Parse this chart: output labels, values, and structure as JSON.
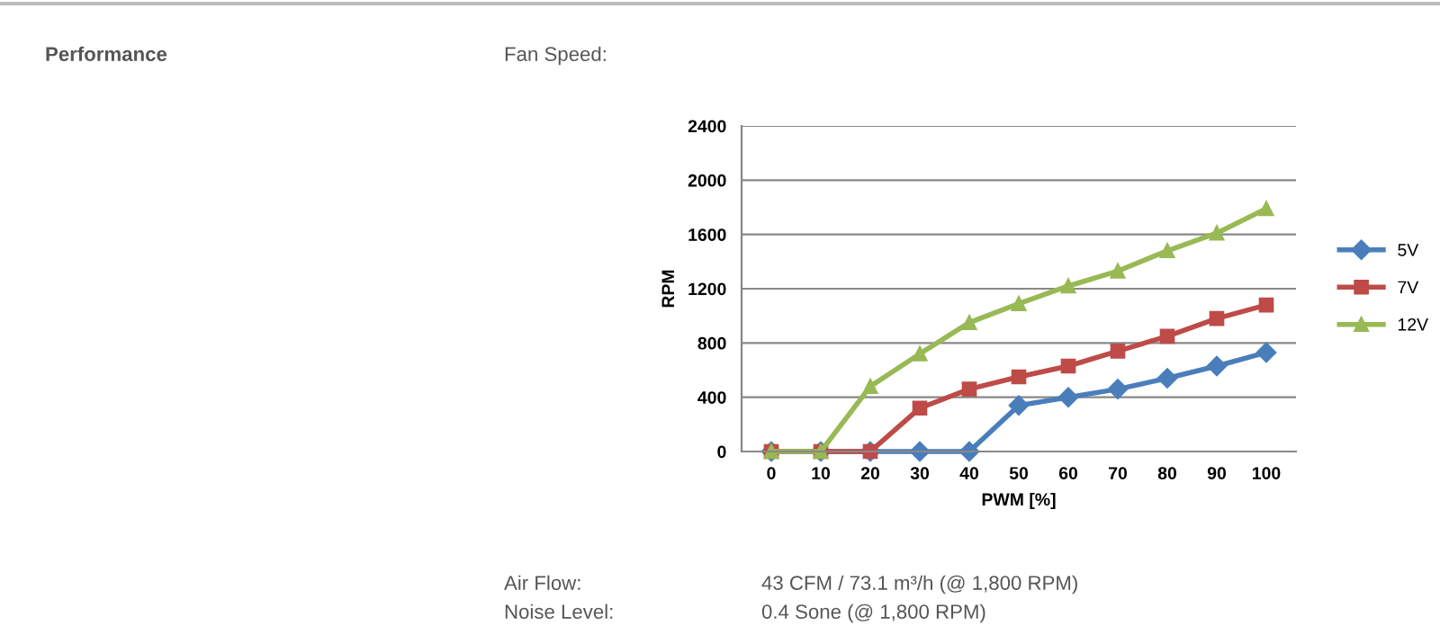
{
  "chart_data": {
    "type": "line",
    "title": "Performance",
    "subtitle": "Fan Speed:",
    "xlabel": "PWM [%]",
    "ylabel": "RPM",
    "categories": [
      "0",
      "10",
      "20",
      "30",
      "40",
      "50",
      "60",
      "70",
      "80",
      "90",
      "100"
    ],
    "series": [
      {
        "name": "5V",
        "color": "#4a7ebb",
        "marker": "diamond",
        "values": [
          0,
          0,
          0,
          0,
          0,
          340,
          400,
          460,
          540,
          630,
          730
        ]
      },
      {
        "name": "7V",
        "color": "#be4b48",
        "marker": "square",
        "values": [
          0,
          0,
          0,
          320,
          460,
          550,
          630,
          740,
          850,
          980,
          1080
        ]
      },
      {
        "name": "12V",
        "color": "#98b954",
        "marker": "triangle",
        "values": [
          0,
          0,
          480,
          720,
          950,
          1090,
          1220,
          1330,
          1480,
          1610,
          1790
        ]
      }
    ],
    "ylim": [
      0,
      2400
    ],
    "yticks": [
      0,
      400,
      800,
      1200,
      1600,
      2000,
      2400
    ],
    "grid": "y",
    "legend": "right",
    "line_style": "solid",
    "annotations": [
      "Air Flow:",
      "43 CFM / 73.1 m³/h (@ 1,800 RPM)",
      "Noise Level:",
      "0.4 Sone (@ 1,800 RPM)"
    ]
  }
}
